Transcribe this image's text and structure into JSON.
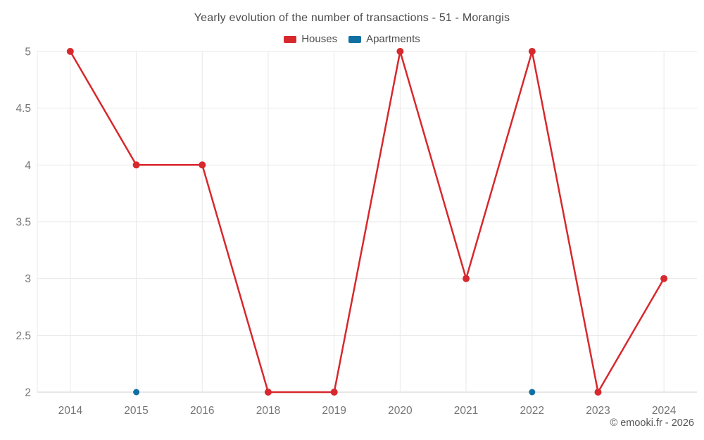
{
  "title": "Yearly evolution of the number of transactions - 51 - Morangis",
  "watermark": "© emooki.fr - 2026",
  "colors": {
    "houses": "#d7282d",
    "apartments": "#1170a2",
    "grid": "#e8e8e8",
    "axis_line": "#cfcfcf",
    "tick_text": "#757575",
    "title_text": "#4c4c4c"
  },
  "chart_data": {
    "type": "line",
    "title": "Yearly evolution of the number of transactions - 51 - Morangis",
    "categories": [
      "2014",
      "2015",
      "2016",
      "2018",
      "2019",
      "2020",
      "2021",
      "2022",
      "2023",
      "2024"
    ],
    "series": [
      {
        "name": "Houses",
        "color": "#d7282d",
        "values": [
          5,
          4,
          4,
          2,
          2,
          5,
          3,
          5,
          2,
          3
        ]
      },
      {
        "name": "Apartments",
        "color": "#1170a2",
        "values": [
          null,
          2,
          null,
          null,
          null,
          null,
          null,
          2,
          null,
          null
        ]
      }
    ],
    "xlabel": "",
    "ylabel": "",
    "ylim": [
      2,
      5
    ],
    "yticks": [
      2,
      2.5,
      3,
      3.5,
      4,
      4.5,
      5
    ],
    "grid": true,
    "legend_position": "top",
    "annotations": [
      "© emooki.fr - 2026"
    ]
  }
}
